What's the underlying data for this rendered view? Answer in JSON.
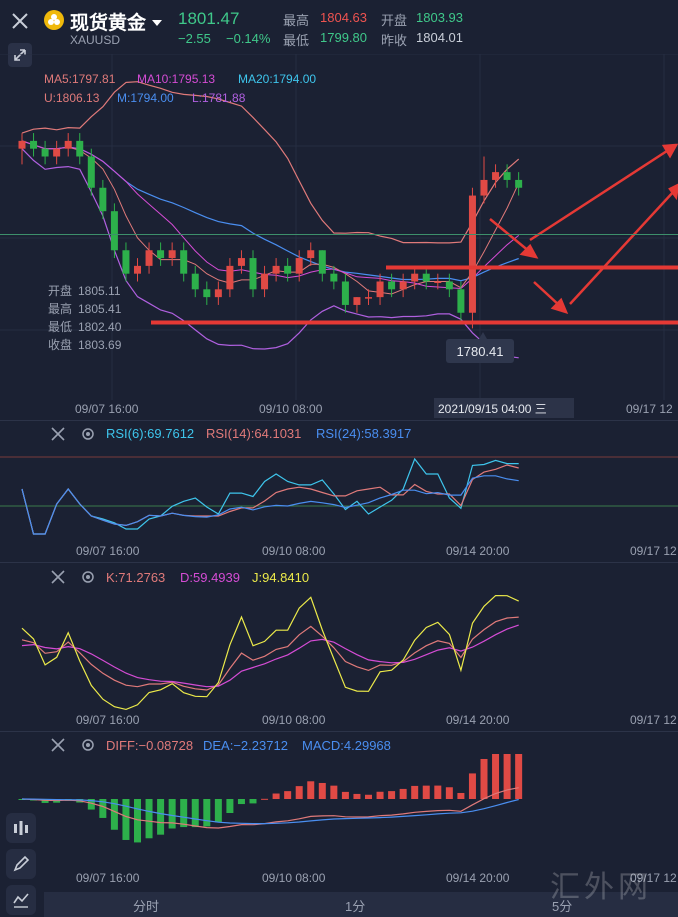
{
  "header": {
    "name": "现货黄金",
    "symbol": "XAUUSD",
    "price": "1801.47",
    "change": "−2.55",
    "change_pct": "−0.14%",
    "high_label": "最高",
    "high": "1804.63",
    "open_label": "开盘",
    "open": "1803.93",
    "low_label": "最低",
    "low": "1799.80",
    "prev_close_label": "昨收",
    "prev_close": "1804.01"
  },
  "colors": {
    "up": "#e04a45",
    "down": "#2db04b",
    "green_text": "#3fc88a",
    "red_text": "#ef5350",
    "bg": "#1b2133",
    "accent": "#f0b90b"
  },
  "main_chart": {
    "ma5": "MA5:1797.81",
    "ma10": "MA10:1795.13",
    "ma20": "MA20:1794.00",
    "boll_u": "U:1806.13",
    "boll_m": "M:1794.00",
    "boll_l": "L:1781.88",
    "ohlc": [
      {
        "label": "开盘",
        "value": "1805.11"
      },
      {
        "label": "最高",
        "value": "1805.41"
      },
      {
        "label": "最低",
        "value": "1802.40"
      },
      {
        "label": "收盘",
        "value": "1803.69"
      }
    ],
    "low_marker": "1780.41",
    "x_ticks": [
      "09/07 16:00",
      "09/10 08:00",
      "2021/09/15 04:00 三",
      "09/17 12"
    ]
  },
  "rsi": {
    "rsi6": "RSI(6):69.7612",
    "rsi14": "RSI(14):64.1031",
    "rsi24": "RSI(24):58.3917",
    "x_ticks": [
      "09/07 16:00",
      "09/10 08:00",
      "09/14 20:00",
      "09/17 12"
    ]
  },
  "kdj": {
    "k": "K:71.2763",
    "d": "D:59.4939",
    "j": "J:94.8410",
    "x_ticks": [
      "09/07 16:00",
      "09/10 08:00",
      "09/14 20:00",
      "09/17 12"
    ]
  },
  "macd": {
    "diff": "DIFF:−0.08728",
    "dea": "DEA:−2.23712",
    "macd": "MACD:4.29968",
    "x_ticks": [
      "09/07 16:00",
      "09/10 08:00",
      "09/14 20:00",
      "09/17 12"
    ]
  },
  "timeframes": [
    "分时",
    "1分",
    "5分"
  ],
  "watermark": "汇外网",
  "chart_data": {
    "type": "candlestick",
    "candles": [
      [
        1803,
        1805,
        1801,
        1804
      ],
      [
        1804,
        1805,
        1802,
        1803
      ],
      [
        1803,
        1804,
        1801,
        1802
      ],
      [
        1802,
        1804,
        1801,
        1803
      ],
      [
        1803,
        1805,
        1802,
        1804
      ],
      [
        1804,
        1805,
        1801,
        1802
      ],
      [
        1802,
        1803,
        1797,
        1798
      ],
      [
        1798,
        1799,
        1794,
        1795
      ],
      [
        1795,
        1796,
        1789,
        1790
      ],
      [
        1790,
        1791,
        1786,
        1787
      ],
      [
        1787,
        1789,
        1786,
        1788
      ],
      [
        1788,
        1791,
        1787,
        1790
      ],
      [
        1790,
        1791,
        1788,
        1789
      ],
      [
        1789,
        1791,
        1788,
        1790
      ],
      [
        1790,
        1791,
        1786,
        1787
      ],
      [
        1787,
        1788,
        1784,
        1785
      ],
      [
        1785,
        1786,
        1783,
        1784
      ],
      [
        1784,
        1786,
        1783,
        1785
      ],
      [
        1785,
        1789,
        1784,
        1788
      ],
      [
        1788,
        1790,
        1787,
        1789
      ],
      [
        1789,
        1790,
        1784,
        1785
      ],
      [
        1785,
        1788,
        1784,
        1787
      ],
      [
        1787,
        1789,
        1786,
        1788
      ],
      [
        1788,
        1789,
        1786,
        1787
      ],
      [
        1787,
        1790,
        1786,
        1789
      ],
      [
        1789,
        1791,
        1788,
        1790
      ],
      [
        1790,
        1790,
        1786,
        1787
      ],
      [
        1787,
        1788,
        1785,
        1786
      ],
      [
        1786,
        1787,
        1782,
        1783
      ],
      [
        1783,
        1784,
        1782,
        1784
      ],
      [
        1784,
        1785,
        1783,
        1784
      ],
      [
        1784,
        1787,
        1783,
        1786
      ],
      [
        1786,
        1787,
        1784,
        1785
      ],
      [
        1785,
        1787,
        1784,
        1786
      ],
      [
        1786,
        1788,
        1785,
        1787
      ],
      [
        1787,
        1788,
        1785,
        1786
      ],
      [
        1786,
        1787,
        1785,
        1786
      ],
      [
        1786,
        1787,
        1784,
        1785
      ],
      [
        1785,
        1786,
        1781,
        1782
      ],
      [
        1782,
        1798,
        1780,
        1797
      ],
      [
        1797,
        1802,
        1796,
        1799
      ],
      [
        1799,
        1801,
        1798,
        1800
      ],
      [
        1800,
        1801,
        1798,
        1799
      ],
      [
        1799,
        1800,
        1797,
        1798
      ]
    ],
    "ylim": [
      1778,
      1810
    ],
    "annotations": [
      "support-line 1782.4",
      "resistance-line 1787.8",
      "low 1780.41"
    ]
  }
}
